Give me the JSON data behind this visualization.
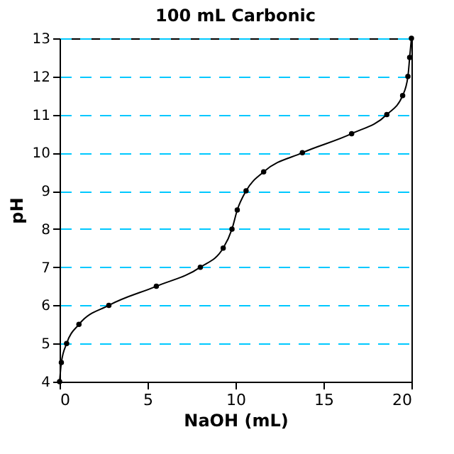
{
  "chart_data": {
    "type": "line",
    "title": "100 mL Carbonic",
    "xlabel": "NaOH (mL)",
    "ylabel": "pH",
    "x": [
      0,
      0.1,
      0.4,
      1.1,
      2.8,
      5.5,
      8.0,
      9.3,
      9.8,
      10.1,
      10.6,
      11.6,
      13.8,
      16.6,
      18.6,
      19.5,
      19.8,
      19.9,
      20
    ],
    "series": [
      {
        "color": "#000000",
        "values": [
          4,
          4.5,
          5,
          5.5,
          6,
          6.5,
          7,
          7.5,
          8,
          8.5,
          9,
          9.5,
          10,
          10.5,
          11,
          11.5,
          12,
          12.5,
          13
        ]
      }
    ],
    "xlim": [
      0,
      20
    ],
    "xticks": [
      0,
      5,
      10,
      15,
      20
    ],
    "ylim": [
      4,
      13
    ],
    "yticks": [
      4,
      5,
      6,
      7,
      8,
      9,
      10,
      11,
      12,
      13
    ],
    "grid": "y",
    "marker": "circle",
    "line_style": "solid"
  }
}
